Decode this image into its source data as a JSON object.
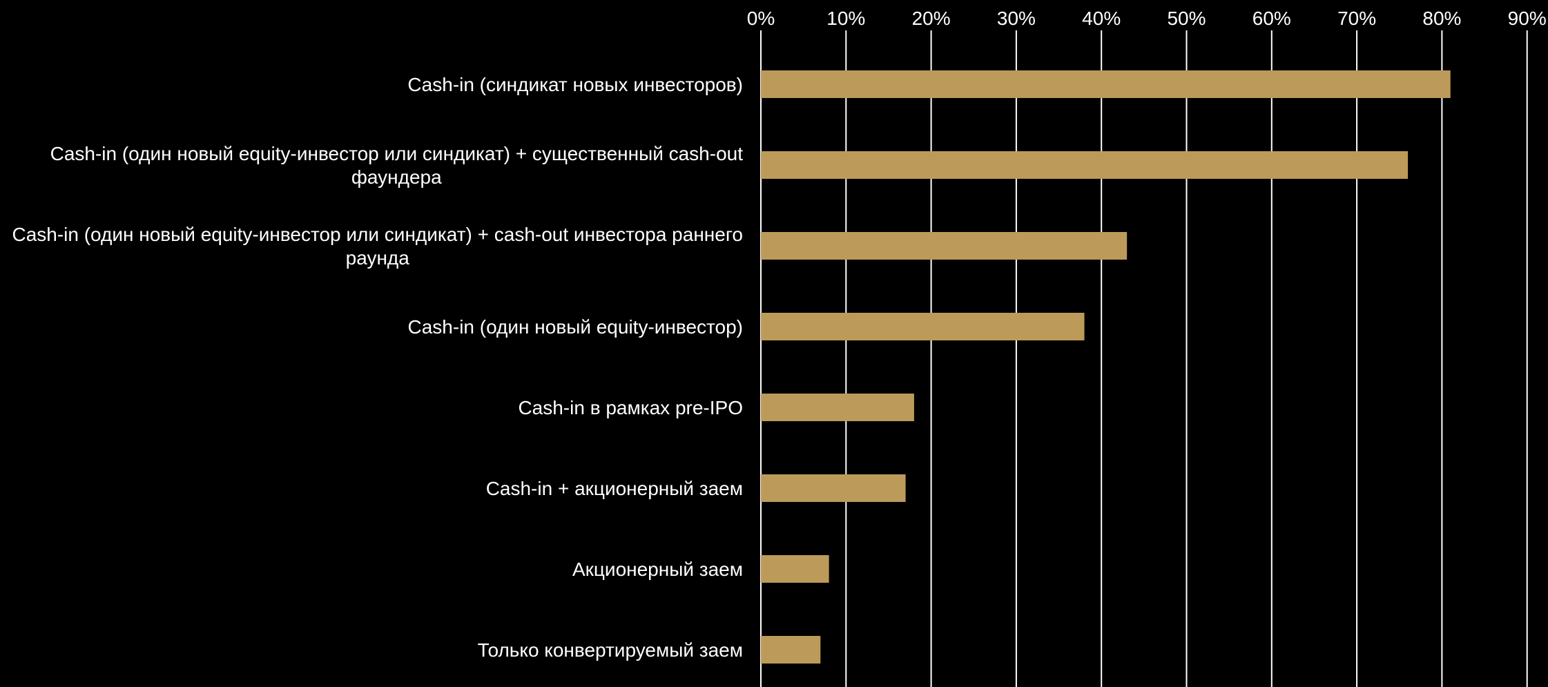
{
  "chart_data": {
    "type": "bar",
    "orientation": "horizontal",
    "title": "",
    "xlabel": "",
    "ylabel": "",
    "xlim": [
      0,
      90
    ],
    "tick_values": [
      0,
      10,
      20,
      30,
      40,
      50,
      60,
      70,
      80,
      90
    ],
    "tick_labels": [
      "0%",
      "10%",
      "20%",
      "30%",
      "40%",
      "50%",
      "60%",
      "70%",
      "80%",
      "90%"
    ],
    "axis_position": "top",
    "grid": true,
    "legend": "none",
    "categories": [
      [
        "Cash-in (синдикат новых инвесторов)"
      ],
      [
        "Cash-in (один новый equity-инвестор или синдикат) + существенный cash-out",
        "фаундера"
      ],
      [
        "Cash-in (один новый equity-инвестор или синдикат) + cash-out инвестора  раннего",
        "раунда"
      ],
      [
        "Cash-in (один новый equity-инвестор)"
      ],
      [
        "Cash-in в рамках pre-IPO"
      ],
      [
        "Cash-in + акционерный заем"
      ],
      [
        "Акционерный заем"
      ],
      [
        "Только конвертируемый заем"
      ]
    ],
    "values": [
      81,
      76,
      43,
      38,
      18,
      17,
      8,
      7
    ],
    "unit": "%",
    "colors": {
      "background": "#000000",
      "bar": "#BC9A5A",
      "grid": "#FFFFFF",
      "text": "#FFFFFF"
    }
  }
}
